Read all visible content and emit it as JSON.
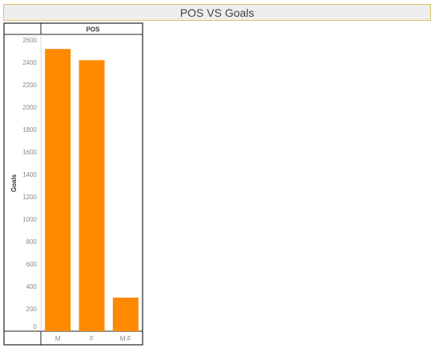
{
  "title": "POS VS Goals",
  "chart_data": {
    "type": "bar",
    "column_header": "POS",
    "categories": [
      "M",
      "F",
      "M-F"
    ],
    "values": [
      2520,
      2420,
      300
    ],
    "xlabel": "",
    "ylabel": "Goals",
    "ylim": [
      0,
      2600
    ],
    "yticks": [
      0,
      200,
      400,
      600,
      800,
      1000,
      1200,
      1400,
      1600,
      1800,
      2000,
      2200,
      2400,
      2600
    ],
    "grid": false,
    "bar_color": "#ff8a00"
  }
}
